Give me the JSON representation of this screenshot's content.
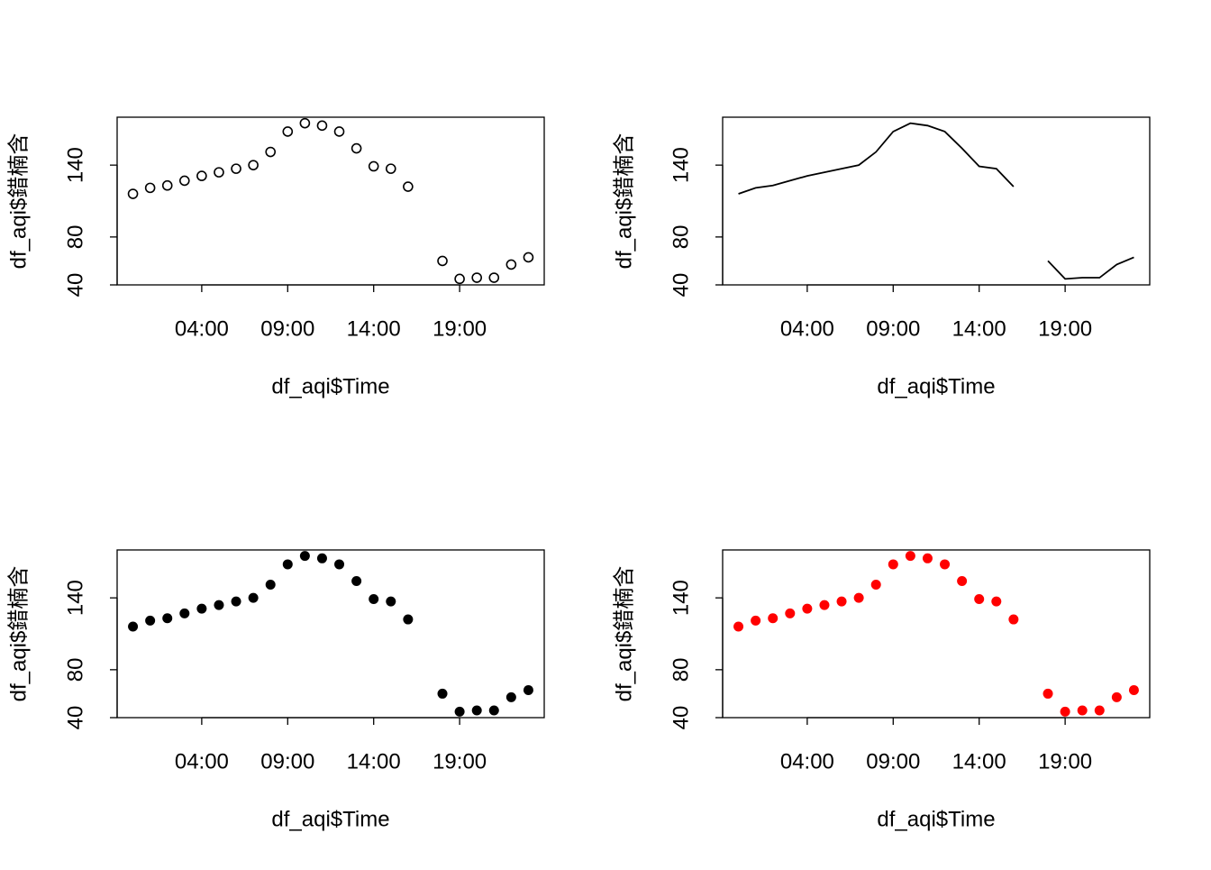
{
  "chart_data": [
    {
      "type": "scatter",
      "marker": "open",
      "color": "#000000",
      "x_label": "df_aqi$Time",
      "y_label": "df_aqi$錯楠含",
      "x": [
        0,
        1,
        2,
        3,
        4,
        5,
        6,
        7,
        8,
        9,
        10,
        11,
        12,
        13,
        14,
        15,
        16,
        17,
        18,
        19,
        20,
        21,
        22,
        23
      ],
      "values": [
        116,
        121,
        123,
        127,
        131,
        134,
        137,
        140,
        151,
        168,
        175,
        173,
        168,
        154,
        139,
        137,
        122,
        null,
        60,
        45,
        46,
        46,
        57,
        63
      ],
      "xlim": [
        -0.92,
        23.92
      ],
      "ylim": [
        40,
        180
      ],
      "xticks": [
        {
          "value": 4,
          "label": "04:00"
        },
        {
          "value": 9,
          "label": "09:00"
        },
        {
          "value": 14,
          "label": "14:00"
        },
        {
          "value": 19,
          "label": "19:00"
        }
      ],
      "yticks": [
        40,
        80,
        140
      ]
    },
    {
      "type": "line",
      "color": "#000000",
      "x_label": "df_aqi$Time",
      "y_label": "df_aqi$錯楠含",
      "x": [
        0,
        1,
        2,
        3,
        4,
        5,
        6,
        7,
        8,
        9,
        10,
        11,
        12,
        13,
        14,
        15,
        16,
        17,
        18,
        19,
        20,
        21,
        22,
        23
      ],
      "values": [
        116,
        121,
        123,
        127,
        131,
        134,
        137,
        140,
        151,
        168,
        175,
        173,
        168,
        154,
        139,
        137,
        122,
        null,
        60,
        45,
        46,
        46,
        57,
        63
      ],
      "xlim": [
        -0.92,
        23.92
      ],
      "ylim": [
        40,
        180
      ],
      "xticks": [
        {
          "value": 4,
          "label": "04:00"
        },
        {
          "value": 9,
          "label": "09:00"
        },
        {
          "value": 14,
          "label": "14:00"
        },
        {
          "value": 19,
          "label": "19:00"
        }
      ],
      "yticks": [
        40,
        80,
        140
      ]
    },
    {
      "type": "scatter",
      "marker": "filled",
      "color": "#000000",
      "x_label": "df_aqi$Time",
      "y_label": "df_aqi$錯楠含",
      "x": [
        0,
        1,
        2,
        3,
        4,
        5,
        6,
        7,
        8,
        9,
        10,
        11,
        12,
        13,
        14,
        15,
        16,
        17,
        18,
        19,
        20,
        21,
        22,
        23
      ],
      "values": [
        116,
        121,
        123,
        127,
        131,
        134,
        137,
        140,
        151,
        168,
        175,
        173,
        168,
        154,
        139,
        137,
        122,
        null,
        60,
        45,
        46,
        46,
        57,
        63
      ],
      "xlim": [
        -0.92,
        23.92
      ],
      "ylim": [
        40,
        180
      ],
      "xticks": [
        {
          "value": 4,
          "label": "04:00"
        },
        {
          "value": 9,
          "label": "09:00"
        },
        {
          "value": 14,
          "label": "14:00"
        },
        {
          "value": 19,
          "label": "19:00"
        }
      ],
      "yticks": [
        40,
        80,
        140
      ]
    },
    {
      "type": "scatter",
      "marker": "filled",
      "color": "#ff0000",
      "x_label": "df_aqi$Time",
      "y_label": "df_aqi$錯楠含",
      "x": [
        0,
        1,
        2,
        3,
        4,
        5,
        6,
        7,
        8,
        9,
        10,
        11,
        12,
        13,
        14,
        15,
        16,
        17,
        18,
        19,
        20,
        21,
        22,
        23
      ],
      "values": [
        116,
        121,
        123,
        127,
        131,
        134,
        137,
        140,
        151,
        168,
        175,
        173,
        168,
        154,
        139,
        137,
        122,
        null,
        60,
        45,
        46,
        46,
        57,
        63
      ],
      "xlim": [
        -0.92,
        23.92
      ],
      "ylim": [
        40,
        180
      ],
      "xticks": [
        {
          "value": 4,
          "label": "04:00"
        },
        {
          "value": 9,
          "label": "09:00"
        },
        {
          "value": 14,
          "label": "14:00"
        },
        {
          "value": 19,
          "label": "19:00"
        }
      ],
      "yticks": [
        40,
        80,
        140
      ]
    }
  ]
}
